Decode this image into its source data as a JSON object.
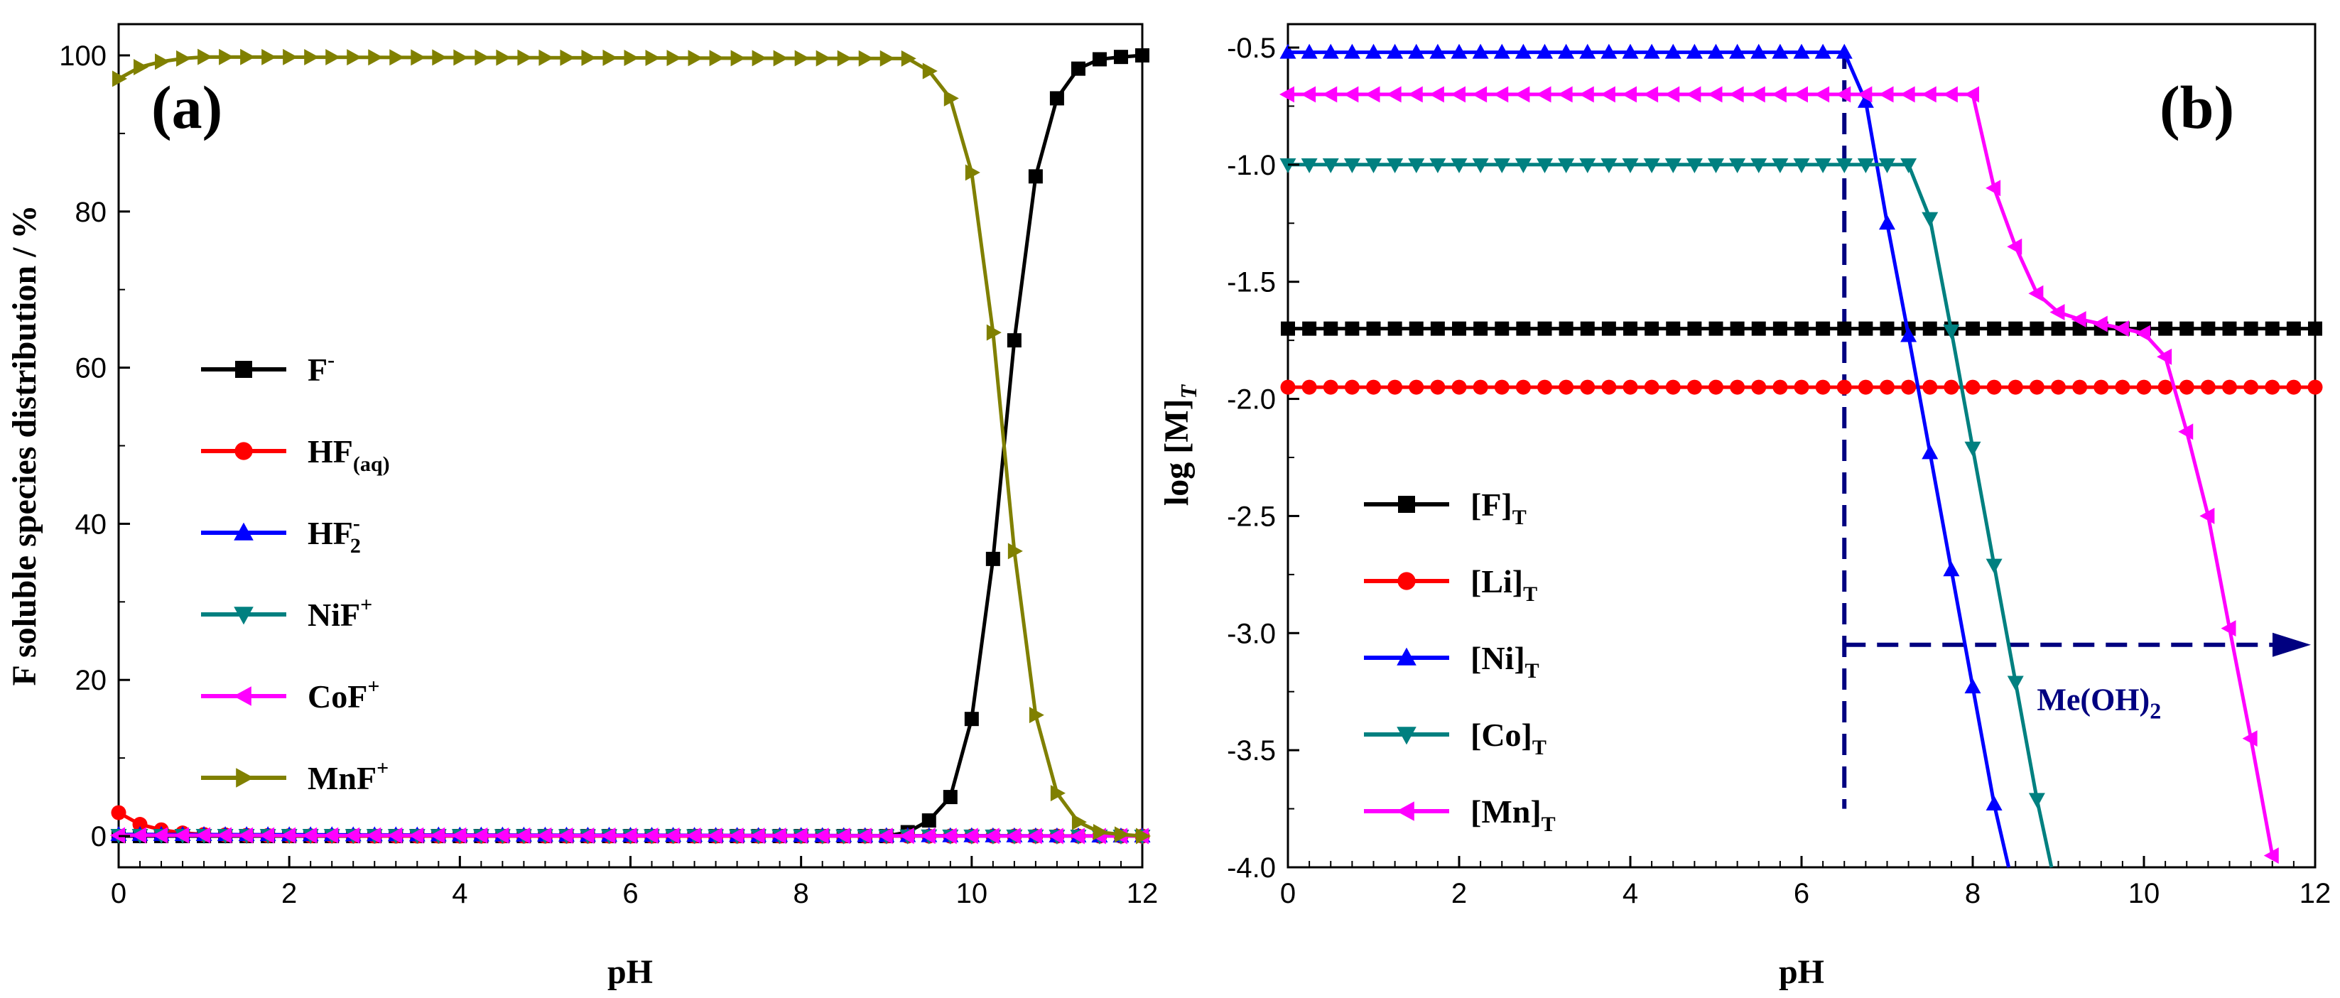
{
  "chart_data": [
    {
      "type": "line",
      "panel_label": "(a)",
      "xlabel": "pH",
      "ylabel": "F soluble species distribution / %",
      "xlim": [
        0,
        12
      ],
      "ylim": [
        -4,
        104
      ],
      "xticks": [
        "0",
        "2",
        "4",
        "6",
        "8",
        "10",
        "12"
      ],
      "yticks": [
        "0",
        "20",
        "40",
        "60",
        "80",
        "100"
      ],
      "legend_position": "center-left",
      "series": [
        {
          "name": "F",
          "sup": "-",
          "sub": "",
          "color": "#000000",
          "marker": "square",
          "points": [
            [
              0,
              0
            ],
            [
              9,
              0
            ],
            [
              9.25,
              0.5
            ],
            [
              9.5,
              2
            ],
            [
              9.75,
              5
            ],
            [
              10,
              15
            ],
            [
              10.25,
              35.5
            ],
            [
              10.5,
              63.5
            ],
            [
              10.75,
              84.5
            ],
            [
              11,
              94.5
            ],
            [
              11.25,
              98.3
            ],
            [
              11.5,
              99.5
            ],
            [
              11.75,
              99.8
            ],
            [
              12,
              100
            ]
          ]
        },
        {
          "name": "HF",
          "sup": "",
          "sub": "(aq)",
          "color": "#ff0000",
          "marker": "circle",
          "points": [
            [
              0,
              3
            ],
            [
              0.25,
              1.5
            ],
            [
              0.5,
              0.8
            ],
            [
              0.75,
              0.4
            ],
            [
              1,
              0.2
            ],
            [
              1.5,
              0.1
            ],
            [
              2,
              0.05
            ],
            [
              3,
              0
            ],
            [
              12,
              0
            ]
          ]
        },
        {
          "name": "HF",
          "sup": "-",
          "sub": "2",
          "color": "#0000ff",
          "marker": "triangle-up",
          "points": [
            [
              0,
              0.2
            ],
            [
              12,
              0
            ]
          ]
        },
        {
          "name": "NiF",
          "sup": "+",
          "sub": "",
          "color": "#008080",
          "marker": "triangle-down",
          "points": [
            [
              0,
              0.1
            ],
            [
              12,
              0
            ]
          ]
        },
        {
          "name": "CoF",
          "sup": "+",
          "sub": "",
          "color": "#ff00ff",
          "marker": "triangle-left",
          "points": [
            [
              0,
              0.1
            ],
            [
              12,
              0
            ]
          ]
        },
        {
          "name": "MnF",
          "sup": "+",
          "sub": "",
          "color": "#808000",
          "marker": "triangle-right",
          "points": [
            [
              0,
              97
            ],
            [
              0.25,
              98.5
            ],
            [
              0.5,
              99.2
            ],
            [
              0.75,
              99.6
            ],
            [
              1,
              99.8
            ],
            [
              9.25,
              99.6
            ],
            [
              9.5,
              98
            ],
            [
              9.75,
              94.5
            ],
            [
              10,
              85
            ],
            [
              10.25,
              64.5
            ],
            [
              10.5,
              36.5
            ],
            [
              10.75,
              15.5
            ],
            [
              11,
              5.5
            ],
            [
              11.25,
              1.8
            ],
            [
              11.5,
              0.5
            ],
            [
              11.75,
              0.2
            ],
            [
              12,
              0
            ]
          ]
        }
      ]
    },
    {
      "type": "line",
      "panel_label": "(b)",
      "xlabel": "pH",
      "ylabel": "log [M]",
      "ylabel_sub": "T",
      "xlim": [
        0,
        12
      ],
      "ylim": [
        -4.0,
        -0.4
      ],
      "xticks": [
        "0",
        "2",
        "4",
        "6",
        "8",
        "10",
        "12"
      ],
      "yticks": [
        "-0.5",
        "-1.0",
        "-1.5",
        "-2.0",
        "-2.5",
        "-3.0",
        "-3.5",
        "-4.0"
      ],
      "legend_position": "lower-left",
      "series": [
        {
          "name": "[F]",
          "sub": "T",
          "color": "#000000",
          "marker": "square",
          "points": [
            [
              0,
              -1.7
            ],
            [
              12,
              -1.7
            ]
          ]
        },
        {
          "name": "[Li]",
          "sub": "T",
          "color": "#ff0000",
          "marker": "circle",
          "points": [
            [
              0,
              -1.95
            ],
            [
              12,
              -1.95
            ]
          ]
        },
        {
          "name": "[Ni]",
          "sub": "T",
          "color": "#0000ff",
          "marker": "triangle-up",
          "points": [
            [
              0,
              -0.52
            ],
            [
              6.5,
              -0.52
            ],
            [
              6.75,
              -0.73
            ],
            [
              7,
              -1.25
            ],
            [
              7.25,
              -1.73
            ],
            [
              7.5,
              -2.23
            ],
            [
              7.75,
              -2.73
            ],
            [
              8,
              -3.23
            ],
            [
              8.25,
              -3.73
            ],
            [
              8.42,
              -4.0
            ]
          ]
        },
        {
          "name": "[Co]",
          "sub": "T",
          "color": "#008080",
          "marker": "triangle-down",
          "points": [
            [
              0,
              -1.0
            ],
            [
              7.25,
              -1.0
            ],
            [
              7.5,
              -1.23
            ],
            [
              7.75,
              -1.71
            ],
            [
              8,
              -2.21
            ],
            [
              8.25,
              -2.71
            ],
            [
              8.5,
              -3.21
            ],
            [
              8.75,
              -3.71
            ],
            [
              8.92,
              -4.0
            ]
          ]
        },
        {
          "name": "[Mn]",
          "sub": "T",
          "color": "#ff00ff",
          "marker": "triangle-left",
          "points": [
            [
              0,
              -0.7
            ],
            [
              8,
              -0.7
            ],
            [
              8.25,
              -1.1
            ],
            [
              8.5,
              -1.35
            ],
            [
              8.75,
              -1.55
            ],
            [
              9,
              -1.63
            ],
            [
              9.25,
              -1.66
            ],
            [
              9.5,
              -1.68
            ],
            [
              9.75,
              -1.7
            ],
            [
              10,
              -1.72
            ],
            [
              10.25,
              -1.82
            ],
            [
              10.5,
              -2.14
            ],
            [
              10.75,
              -2.5
            ],
            [
              11,
              -2.98
            ],
            [
              11.25,
              -3.45
            ],
            [
              11.5,
              -3.95
            ]
          ]
        }
      ],
      "annotations": {
        "dashed_vline_x": 6.5,
        "dashed_vline_range": [
          -3.75,
          -0.5
        ],
        "dashed_arrow_y": -3.05,
        "dashed_arrow_x": [
          6.5,
          12
        ],
        "arrow_label": "Me(OH)",
        "arrow_label_sub": "2",
        "arrow_label_pos": [
          8.75,
          -3.28
        ],
        "color": "#000080"
      }
    }
  ]
}
